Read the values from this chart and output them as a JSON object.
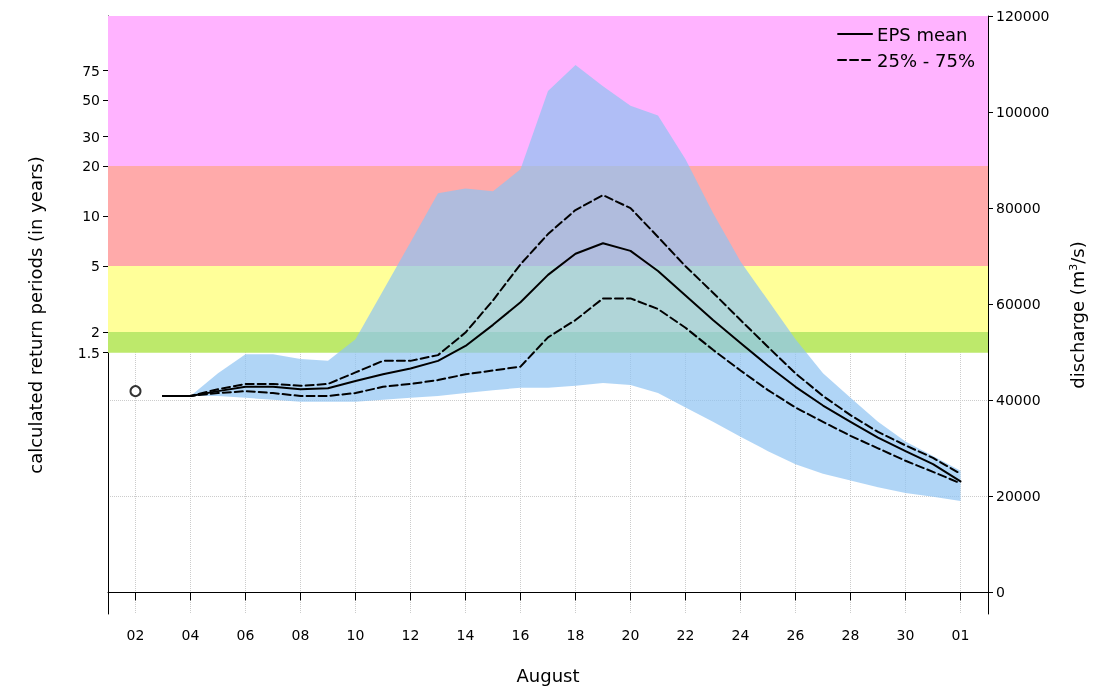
{
  "chart_data": {
    "type": "line",
    "xlabel": "August",
    "ylabel": "calculated return periods (in years)",
    "y2label": "discharge (m$^{3}$/s)",
    "xlim": [
      "--08-01",
      "--09-02"
    ],
    "xticks": [
      {
        "value": "--08-02",
        "label": "02"
      },
      {
        "value": "--08-04",
        "label": "04"
      },
      {
        "value": "--08-06",
        "label": "06"
      },
      {
        "value": "--08-08",
        "label": "08"
      },
      {
        "value": "--08-10",
        "label": "10"
      },
      {
        "value": "--08-12",
        "label": "12"
      },
      {
        "value": "--08-14",
        "label": "14"
      },
      {
        "value": "--08-16",
        "label": "16"
      },
      {
        "value": "--08-18",
        "label": "18"
      },
      {
        "value": "--08-20",
        "label": "20"
      },
      {
        "value": "--08-22",
        "label": "22"
      },
      {
        "value": "--08-24",
        "label": "24"
      },
      {
        "value": "--08-26",
        "label": "26"
      },
      {
        "value": "--08-28",
        "label": "28"
      },
      {
        "value": "--08-30",
        "label": "30"
      },
      {
        "value": "--09-01",
        "label": "01"
      }
    ],
    "log": "y",
    "ylim": [
      0.04,
      160
    ],
    "yticks": [
      1.5,
      2,
      5,
      10,
      20,
      30,
      50,
      75
    ],
    "y2lim": [
      -4500,
      120000
    ],
    "y2ticks": [
      0,
      20000,
      40000,
      60000,
      80000,
      100000,
      120000
    ],
    "grid": true,
    "legend": "top right",
    "bands": [
      {
        "axis": "y",
        "from": 1.5,
        "to": 2,
        "color": "#bde96b"
      },
      {
        "axis": "y",
        "from": 2,
        "to": 5,
        "color": "#ffff99"
      },
      {
        "axis": "y",
        "from": 5,
        "to": 20,
        "color": "#ffaaaa"
      },
      {
        "axis": "y",
        "from": 20,
        "to": 160,
        "color": "#ffb3ff"
      }
    ],
    "x": [
      "--08-03",
      "--08-04",
      "--08-05",
      "--08-06",
      "--08-07",
      "--08-08",
      "--08-09",
      "--08-10",
      "--08-11",
      "--08-12",
      "--08-13",
      "--08-14",
      "--08-15",
      "--08-16",
      "--08-17",
      "--08-18",
      "--08-19",
      "--08-20",
      "--08-21",
      "--08-22",
      "--08-23",
      "--08-24",
      "--08-25",
      "--08-26",
      "--08-27",
      "--08-28",
      "--08-29",
      "--08-30",
      "--08-31",
      "--09-01"
    ],
    "series": [
      {
        "name": "EPS mean",
        "axis": "y2",
        "color": "#000000",
        "line_style": "solid",
        "marker": "none",
        "values": [
          40900,
          40900,
          41900,
          42800,
          42800,
          42300,
          42500,
          44000,
          45400,
          46600,
          48200,
          51300,
          55700,
          60400,
          66100,
          70500,
          72700,
          71100,
          66900,
          61800,
          56700,
          51900,
          47200,
          42800,
          38900,
          35500,
          32200,
          29400,
          26700,
          23100
        ],
        "lower": [
          40900,
          40900,
          40900,
          40500,
          40100,
          39700,
          39700,
          39700,
          40100,
          40500,
          40900,
          41500,
          42100,
          42600,
          42600,
          43000,
          43600,
          43200,
          41500,
          38500,
          35500,
          32400,
          29400,
          26700,
          24700,
          23300,
          21900,
          20700,
          19900,
          19000
        ],
        "upper": [
          40900,
          40900,
          45600,
          49600,
          49600,
          48600,
          48200,
          52700,
          62800,
          72900,
          83100,
          84100,
          83500,
          88100,
          104400,
          109800,
          105400,
          101300,
          99300,
          90200,
          79000,
          68900,
          60800,
          52700,
          45600,
          40500,
          35500,
          31400,
          28400,
          25300
        ]
      },
      {
        "name": "25% - 75%",
        "axis": "y2",
        "color": "#000000",
        "line_style": "dashed",
        "marker": "none",
        "values": [
          40900,
          40900,
          42300,
          43400,
          43400,
          43000,
          43400,
          45800,
          48200,
          48200,
          49400,
          54100,
          60800,
          68300,
          74600,
          79600,
          82700,
          80000,
          74000,
          67900,
          62400,
          56700,
          51100,
          45600,
          40900,
          36900,
          33400,
          30600,
          28000,
          24700
        ]
      },
      {
        "axis": "y2",
        "color": "#000000",
        "line_style": "dashed",
        "marker": "none",
        "values": [
          40900,
          40900,
          41500,
          41900,
          41500,
          40900,
          40900,
          41500,
          42800,
          43400,
          44200,
          45400,
          46200,
          47000,
          53100,
          56700,
          61200,
          61200,
          59000,
          55100,
          50500,
          46200,
          42100,
          38500,
          35500,
          32600,
          30000,
          27400,
          25100,
          22700
        ]
      },
      {
        "type": "scatter",
        "axis": "y2",
        "color": "#000000",
        "marker": "circle",
        "x": [
          "--08-02"
        ],
        "values": [
          41900
        ]
      }
    ]
  }
}
